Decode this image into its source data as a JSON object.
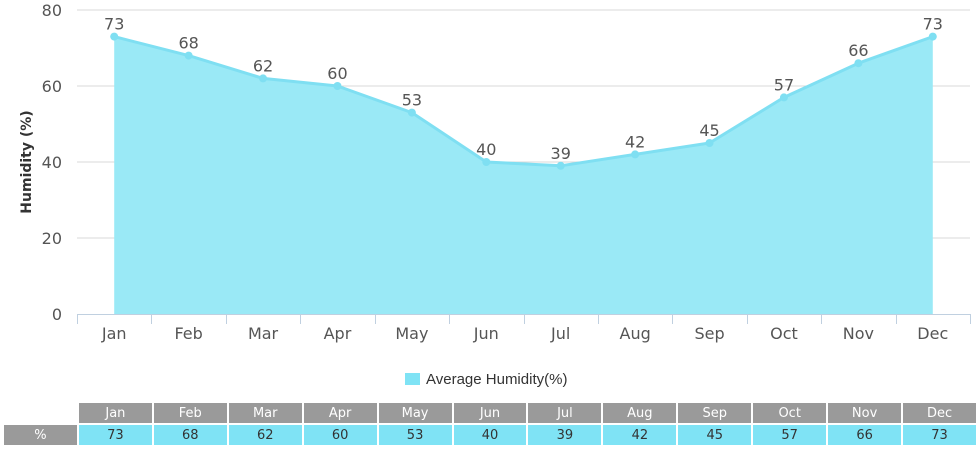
{
  "colors": {
    "fill": "#9ae9f6",
    "line": "#7fdff2",
    "grid": "#d8d8d8",
    "table_header": "#9a9a9a",
    "table_cell": "#7fe3f5"
  },
  "chart_data": {
    "type": "area",
    "categories": [
      "Jan",
      "Feb",
      "Mar",
      "Apr",
      "May",
      "Jun",
      "Jul",
      "Aug",
      "Sep",
      "Oct",
      "Nov",
      "Dec"
    ],
    "series": [
      {
        "name": "Average Humidity(%)",
        "values": [
          73,
          68,
          62,
          60,
          53,
          40,
          39,
          42,
          45,
          57,
          66,
          73
        ]
      }
    ],
    "ylabel": "Humidity (%)",
    "xlabel": "",
    "ylim": [
      0,
      80
    ],
    "yticks": [
      0,
      20,
      40,
      60,
      80
    ],
    "grid": true,
    "legend": "bottom-center",
    "data_labels": true
  },
  "legend": {
    "label": "Average Humidity(%)"
  },
  "table": {
    "row_label": "%",
    "months": [
      "Jan",
      "Feb",
      "Mar",
      "Apr",
      "May",
      "Jun",
      "Jul",
      "Aug",
      "Sep",
      "Oct",
      "Nov",
      "Dec"
    ],
    "values": [
      "73",
      "68",
      "62",
      "60",
      "53",
      "40",
      "39",
      "42",
      "45",
      "57",
      "66",
      "73"
    ]
  }
}
